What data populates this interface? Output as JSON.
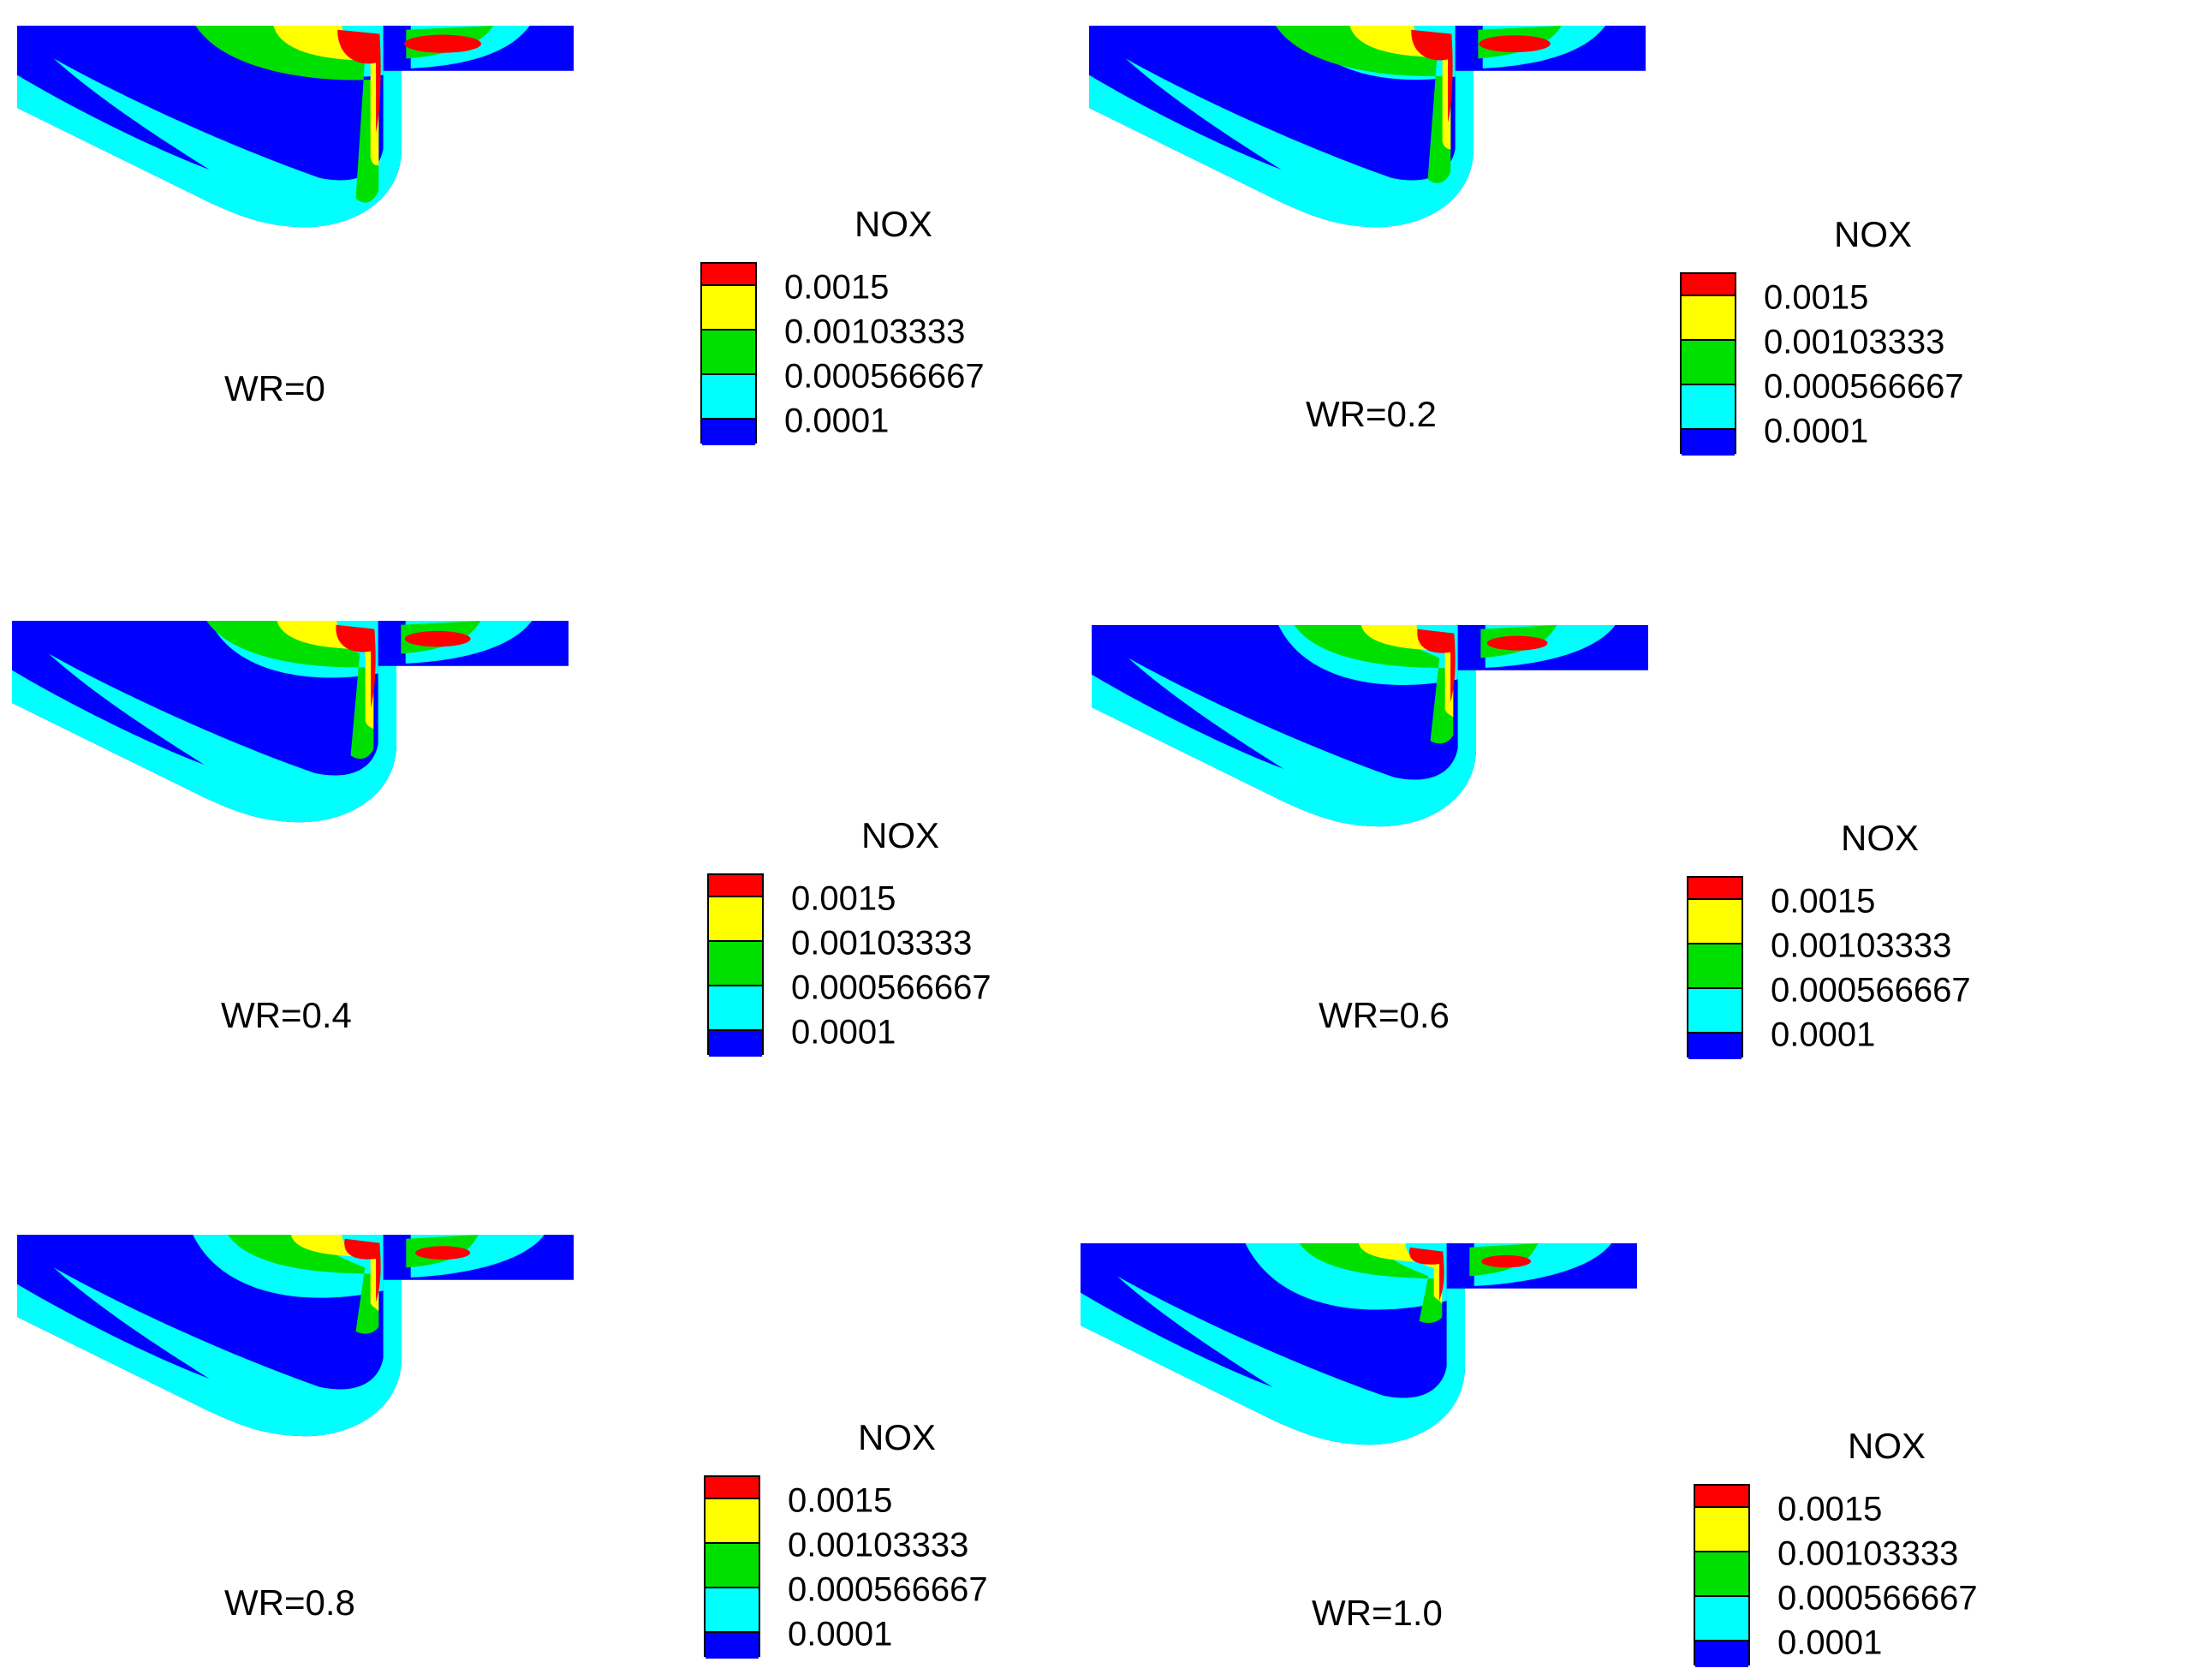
{
  "colors": {
    "blue": "#0000ff",
    "cyan": "#00ffff",
    "green": "#00e000",
    "yellow": "#ffff00",
    "red": "#ff0000"
  },
  "legend": {
    "title": "NOX",
    "levels": [
      "0.0015",
      "0.00103333",
      "0.000566667",
      "0.0001"
    ],
    "band_colors": [
      "red",
      "yellow",
      "green",
      "cyan",
      "blue"
    ]
  },
  "panels": [
    {
      "label": "WR=0",
      "ratio": 0
    },
    {
      "label": "WR=0.2",
      "ratio": 0.2
    },
    {
      "label": "WR=0.4",
      "ratio": 0.4
    },
    {
      "label": "WR=0.6",
      "ratio": 0.6
    },
    {
      "label": "WR=0.8",
      "ratio": 0.8
    },
    {
      "label": "WR=1.0",
      "ratio": 1.0
    }
  ]
}
